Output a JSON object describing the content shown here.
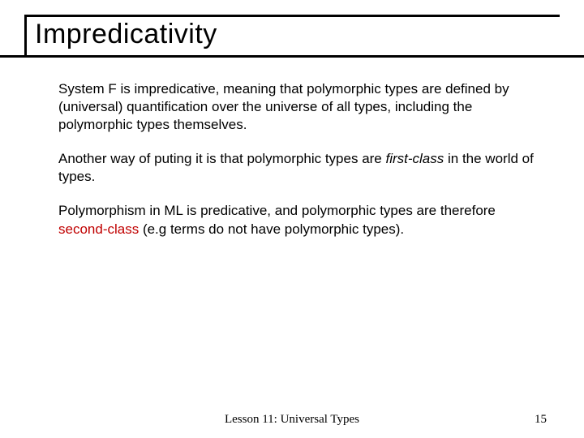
{
  "slide": {
    "title": "Impredicativity",
    "paragraphs": {
      "p1": "System F is impredicative, meaning that polymorphic types are defined by (universal) quantification over the universe of all types, including the polymorphic types themselves.",
      "p2a": "Another way of puting it is that polymorphic types are ",
      "p2b": "first-class",
      "p2c": " in the world of types.",
      "p3a": "Polymorphism in ML is predicative, and polymorphic types are therefore ",
      "p3b": "second-class",
      "p3c": " (e.g terms do not have polymorphic types)."
    },
    "footer": {
      "center": "Lesson 11: Universal Types",
      "page": "15"
    }
  },
  "colors": {
    "red": "#c00000",
    "black": "#000000",
    "background": "#ffffff"
  },
  "typography": {
    "title_fontsize": 34,
    "body_fontsize": 17,
    "footer_fontsize": 15
  }
}
